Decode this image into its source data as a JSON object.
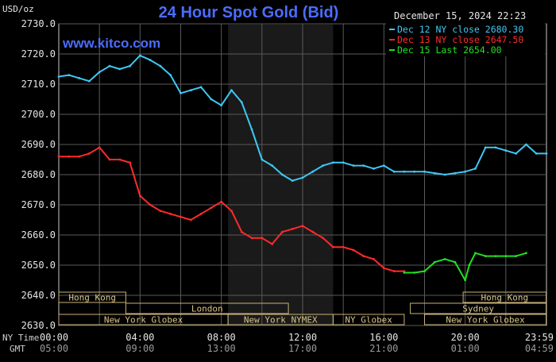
{
  "chart_data": {
    "type": "line",
    "title": "24 Hour Spot Gold (Bid)",
    "unit_label": "USD/oz",
    "brand": "www.kitco.com",
    "timestamp": "December 15, 2024 22:23",
    "ylim": [
      2630,
      2730
    ],
    "y_ticks": [
      "2730.0",
      "2720.0",
      "2710.0",
      "2700.0",
      "2690.0",
      "2680.0",
      "2670.0",
      "2660.0",
      "2650.0",
      "2640.0",
      "2630.0"
    ],
    "x_row_labels": {
      "ny": "NY Time",
      "gmt": "GMT"
    },
    "x_ticks": [
      {
        "hour": 0,
        "ny": "00:00",
        "gmt": "05:00"
      },
      {
        "hour": 4,
        "ny": "04:00",
        "gmt": "09:00"
      },
      {
        "hour": 8,
        "ny": "08:00",
        "gmt": "13:00"
      },
      {
        "hour": 12,
        "ny": "12:00",
        "gmt": "17:00"
      },
      {
        "hour": 16,
        "ny": "16:00",
        "gmt": "21:00"
      },
      {
        "hour": 20,
        "ny": "20:00",
        "gmt": "01:00"
      },
      {
        "hour": 23.983,
        "ny": "23:59",
        "gmt": "04:59"
      }
    ],
    "highlight_hours": [
      8.33,
      13.5
    ],
    "legend": [
      {
        "label": "Dec 12 NY close 2680.30",
        "color": "#3fc8f4"
      },
      {
        "label": "Dec 13 NY close 2647.50",
        "color": "#ff2a2a"
      },
      {
        "label": "Dec 15 Last 2654.00",
        "color": "#22e022"
      }
    ],
    "market_sessions": [
      {
        "label": "Hong Kong",
        "start": 0,
        "end": 3.3,
        "row": 0
      },
      {
        "label": "London",
        "start": 3.3,
        "end": 11.3,
        "row": 1
      },
      {
        "label": "New York Globex",
        "start": 0,
        "end": 8.33,
        "row": 2
      },
      {
        "label": "New York NYMEX",
        "start": 8.33,
        "end": 13.5,
        "row": 2
      },
      {
        "label": "NY Globex",
        "start": 13.5,
        "end": 17.0,
        "row": 2
      },
      {
        "label": "Hong Kong",
        "start": 19.9,
        "end": 23.983,
        "row": 0
      },
      {
        "label": "Sydney",
        "start": 17.3,
        "end": 23.983,
        "row": 1
      },
      {
        "label": "New York Globex",
        "start": 18.0,
        "end": 23.983,
        "row": 2
      }
    ],
    "series": [
      {
        "name": "Dec 12",
        "color": "#3fc8f4",
        "x": [
          0,
          0.5,
          1,
          1.5,
          2,
          2.5,
          3,
          3.5,
          4,
          4.5,
          5,
          5.5,
          6,
          6.5,
          7,
          7.5,
          8,
          8.5,
          9,
          9.5,
          10,
          10.5,
          11,
          11.5,
          12,
          12.5,
          13,
          13.5,
          14,
          14.5,
          15,
          15.5,
          16,
          16.5,
          17,
          17.5,
          18,
          18.5,
          19,
          19.5,
          20,
          20.5,
          21,
          21.5,
          22,
          22.5,
          23,
          23.5,
          24
        ],
        "y": [
          2712.5,
          2713,
          2712,
          2711,
          2714,
          2716,
          2715,
          2716,
          2719.5,
          2718,
          2716,
          2713,
          2707,
          2708,
          2709,
          2705,
          2703,
          2708,
          2704,
          2695,
          2685,
          2683,
          2680,
          2678,
          2679,
          2681,
          2683,
          2684,
          2684,
          2683,
          2683,
          2682,
          2683,
          2681,
          2681,
          2681,
          2681,
          2680.5,
          2680,
          2680.5,
          2681,
          2682,
          2689,
          2689,
          2688,
          2687,
          2690,
          2687,
          2687
        ]
      },
      {
        "name": "Dec 13",
        "color": "#ff2a2a",
        "x": [
          0,
          0.5,
          1,
          1.5,
          2,
          2.5,
          3,
          3.5,
          4,
          4.5,
          5,
          5.5,
          6,
          6.5,
          7,
          7.5,
          8,
          8.5,
          9,
          9.5,
          10,
          10.5,
          11,
          11.5,
          12,
          12.5,
          13,
          13.5,
          14,
          14.5,
          15,
          15.5,
          16,
          16.5,
          17
        ],
        "y": [
          2686,
          2686,
          2686,
          2687,
          2689,
          2685,
          2685,
          2684,
          2673,
          2670,
          2668,
          2667,
          2666,
          2665,
          2667,
          2669,
          2671,
          2668,
          2661,
          2659,
          2659,
          2657,
          2661,
          2662,
          2663,
          2661,
          2659,
          2656,
          2656,
          2655,
          2653,
          2652,
          2649,
          2648,
          2648
        ]
      },
      {
        "name": "Dec 15",
        "color": "#22e022",
        "x": [
          17,
          17.5,
          18,
          18.5,
          19,
          19.5,
          20,
          20.2,
          20.5,
          21,
          21.5,
          22,
          22.5,
          23
        ],
        "y": [
          2647.5,
          2647.5,
          2648,
          2651,
          2652,
          2651,
          2645,
          2650,
          2654,
          2653,
          2653,
          2653,
          2653,
          2654
        ]
      }
    ]
  }
}
